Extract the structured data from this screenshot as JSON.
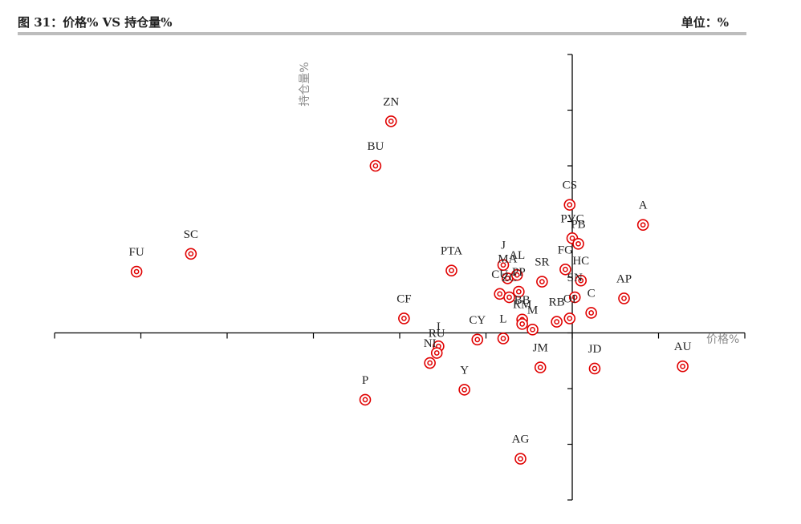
{
  "header": {
    "title": "图 31：价格% VS 持仓量%",
    "unit": "单位：%"
  },
  "chart_data": {
    "type": "scatter",
    "x_axis_title": "价格%",
    "y_axis_title": "持仓量%",
    "xlim": [
      -60,
      20
    ],
    "ylim": [
      -15,
      25
    ],
    "marker_color": "#e00000",
    "points": [
      {
        "label": "ZN",
        "x": -21.0,
        "y": 19.0
      },
      {
        "label": "BU",
        "x": -22.8,
        "y": 15.0
      },
      {
        "label": "SC",
        "x": -44.2,
        "y": 7.1
      },
      {
        "label": "FU",
        "x": -50.5,
        "y": 5.5
      },
      {
        "label": "PTA",
        "x": -14.0,
        "y": 5.6
      },
      {
        "label": "CF",
        "x": -19.5,
        "y": 1.3
      },
      {
        "label": "I",
        "x": -15.5,
        "y": -1.2
      },
      {
        "label": "RU",
        "x": -15.7,
        "y": -1.8
      },
      {
        "label": "NI",
        "x": -16.5,
        "y": -2.7
      },
      {
        "label": "P",
        "x": -24.0,
        "y": -6.0
      },
      {
        "label": "Y",
        "x": -12.5,
        "y": -5.1
      },
      {
        "label": "CY",
        "x": -11.0,
        "y": -0.6
      },
      {
        "label": "L",
        "x": -8.0,
        "y": -0.5
      },
      {
        "label": "J",
        "x": -8.0,
        "y": 6.1
      },
      {
        "label": "MA",
        "x": -7.5,
        "y": 4.9
      },
      {
        "label": "AL",
        "x": -6.4,
        "y": 5.2
      },
      {
        "label": "PP",
        "x": -6.2,
        "y": 3.7
      },
      {
        "label": "CU",
        "x": -8.4,
        "y": 3.5
      },
      {
        "label": "ZC",
        "x": -7.3,
        "y": 3.2
      },
      {
        "label": "BB",
        "x": -5.8,
        "y": 1.2
      },
      {
        "label": "RM",
        "x": -5.8,
        "y": 0.8
      },
      {
        "label": "M",
        "x": -4.6,
        "y": 0.3
      },
      {
        "label": "SR",
        "x": -3.5,
        "y": 4.6
      },
      {
        "label": "JM",
        "x": -3.7,
        "y": -3.1
      },
      {
        "label": "AG",
        "x": -6.0,
        "y": -11.3
      },
      {
        "label": "FG",
        "x": -0.8,
        "y": 5.7
      },
      {
        "label": "CS",
        "x": -0.3,
        "y": 11.5
      },
      {
        "label": "PVC",
        "x": 0.0,
        "y": 8.5
      },
      {
        "label": "PB",
        "x": 0.7,
        "y": 8.0
      },
      {
        "label": "HC",
        "x": 1.0,
        "y": 4.7
      },
      {
        "label": "SN",
        "x": 0.3,
        "y": 3.2
      },
      {
        "label": "OI",
        "x": -0.3,
        "y": 1.3
      },
      {
        "label": "RB",
        "x": -1.8,
        "y": 1.0
      },
      {
        "label": "C",
        "x": 2.2,
        "y": 1.8
      },
      {
        "label": "JD",
        "x": 2.6,
        "y": -3.2
      },
      {
        "label": "AP",
        "x": 6.0,
        "y": 3.1
      },
      {
        "label": "A",
        "x": 8.2,
        "y": 9.7
      },
      {
        "label": "AU",
        "x": 12.8,
        "y": -3.0
      }
    ]
  }
}
